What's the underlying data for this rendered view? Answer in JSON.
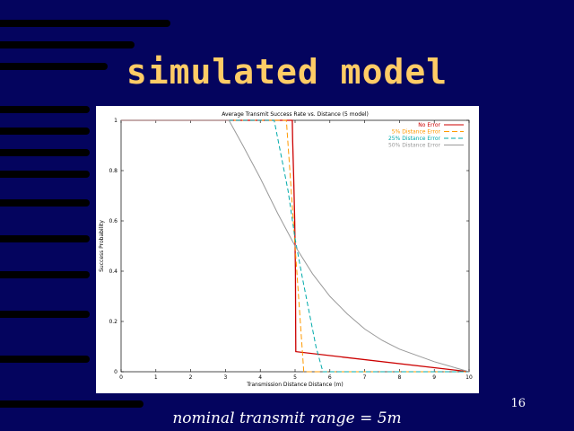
{
  "slide": {
    "title": "simulated model",
    "caption": "nominal transmit range = 5m",
    "page_number": "16"
  },
  "colors": {
    "background": "#04045e",
    "bands": "#000000",
    "title": "#ffcc66",
    "text": "#ffffff"
  },
  "chart_data": {
    "type": "line",
    "title": "Average Transmit Success Rate vs. Distance (5 model)",
    "xlabel": "Transmission Distance Distance (m)",
    "ylabel": "Success Probability",
    "xlim": [
      0,
      10
    ],
    "ylim": [
      0,
      1
    ],
    "x_ticks": [
      0,
      1,
      2,
      3,
      4,
      5,
      6,
      7,
      8,
      9,
      10
    ],
    "y_ticks": [
      0,
      0.2,
      0.4,
      0.6,
      0.8,
      1
    ],
    "y_tick_labels": [
      "0",
      "0.2",
      "0.4",
      "0.6",
      "0.8",
      "1"
    ],
    "grid": false,
    "legend_position": "top-right",
    "series": [
      {
        "name": "No Error",
        "color": "#cc0000",
        "dash": "",
        "x": [
          0,
          4.92,
          4.93,
          4.96,
          4.99,
          5.0,
          5.01,
          5.02,
          10
        ],
        "y": [
          1,
          1,
          0.92,
          0.78,
          0.6,
          0.5,
          0.4,
          0.08,
          0
        ]
      },
      {
        "name": "5% Distance Error",
        "color": "#ff9900",
        "dash": "6,3",
        "x": [
          0,
          4.75,
          5.0,
          5.25,
          10
        ],
        "y": [
          1,
          1,
          0.5,
          0,
          0
        ]
      },
      {
        "name": "25% Distance Error",
        "color": "#00aaaa",
        "dash": "5,3",
        "x": [
          0,
          4.4,
          4.8,
          5.0,
          5.2,
          5.6,
          5.8,
          10
        ],
        "y": [
          1,
          1,
          0.72,
          0.53,
          0.38,
          0.1,
          0,
          0
        ]
      },
      {
        "name": "50% Distance Error",
        "color": "#999999",
        "dash": "",
        "x": [
          0,
          3.1,
          3.5,
          4.0,
          4.5,
          5.0,
          5.5,
          6.0,
          6.5,
          7.0,
          7.5,
          8.0,
          8.5,
          9.0,
          9.5,
          10
        ],
        "y": [
          1,
          1,
          0.9,
          0.77,
          0.63,
          0.5,
          0.39,
          0.3,
          0.23,
          0.17,
          0.125,
          0.09,
          0.065,
          0.04,
          0.02,
          0
        ]
      }
    ]
  }
}
